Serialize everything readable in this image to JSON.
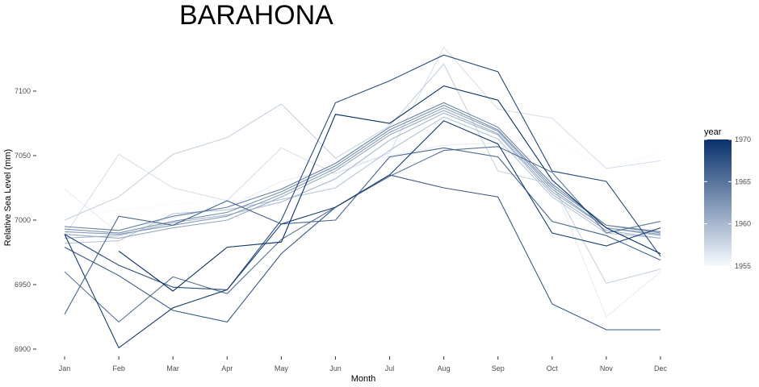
{
  "chart_data": {
    "type": "line",
    "title": "BARAHONA",
    "xlabel": "Month",
    "ylabel": "Relative Sea Level (mm)",
    "categories": [
      "Jan",
      "Feb",
      "Mar",
      "Apr",
      "May",
      "Jun",
      "Jul",
      "Aug",
      "Sep",
      "Oct",
      "Nov",
      "Dec"
    ],
    "ylim": [
      6895,
      7135
    ],
    "yticks": [
      6900,
      6950,
      7000,
      7050,
      7100
    ],
    "ytick_labels": [
      "6900",
      "6950",
      "7000",
      "7050",
      "7100"
    ],
    "grid": false,
    "legend": {
      "title": "year",
      "type": "colorbar",
      "placement": "right",
      "range": [
        1955,
        1970
      ],
      "ticks": [
        1955,
        1960,
        1965,
        1970
      ],
      "tick_labels": [
        "1955",
        "1960",
        "1965",
        "1970"
      ],
      "colors": [
        "#F7FBFF",
        "#08306B"
      ]
    },
    "series": [
      {
        "year": 1955,
        "values": [
          7002,
          7008,
          7012,
          7016,
          7022,
          7030,
          7048,
          7055,
          7060,
          7063,
          7040,
          7052
        ]
      },
      {
        "year": 1956,
        "values": [
          7024,
          6990,
          7002,
          7010,
          7030,
          7040,
          7050,
          7058,
          7060,
          7030,
          6925,
          6960
        ]
      },
      {
        "year": 1957,
        "values": [
          6988,
          7051,
          7025,
          7015,
          7056,
          7036,
          7052,
          7134,
          7086,
          7079,
          7040,
          7046
        ]
      },
      {
        "year": 1958,
        "values": [
          7000,
          7018,
          7051,
          7064,
          7090,
          7048,
          7073,
          7121,
          7038,
          7028,
          6951,
          6962
        ]
      },
      {
        "year": 1959,
        "values": [
          6982,
          6984,
          7005,
          7008,
          7016,
          7025,
          7054,
          7080,
          7063,
          7018,
          6990,
          6986
        ]
      },
      {
        "year": 1960,
        "values": [
          6986,
          6988,
          6998,
          7004,
          7014,
          7032,
          7062,
          7083,
          7066,
          7020,
          6992,
          6986
        ]
      },
      {
        "year": 1961,
        "values": [
          6989,
          6986,
          6994,
          7000,
          7018,
          7038,
          7066,
          7085,
          7067,
          7022,
          6994,
          6988
        ]
      },
      {
        "year": 1962,
        "values": [
          6991,
          6989,
          6996,
          7003,
          7020,
          7040,
          7068,
          7087,
          7069,
          7024,
          6994,
          6989
        ]
      },
      {
        "year": 1963,
        "values": [
          6993,
          6990,
          6999,
          7006,
          7022,
          7042,
          7070,
          7089,
          7070,
          7026,
          6996,
          6990
        ]
      },
      {
        "year": 1964,
        "values": [
          6995,
          6992,
          7003,
          7010,
          7024,
          7044,
          7072,
          7091,
          7072,
          7028,
          6996,
          6991
        ]
      },
      {
        "year": 1965,
        "values": [
          6960,
          6921,
          6956,
          6943,
          6985,
          7010,
          7034,
          7054,
          7057,
          7037,
          6990,
          6999
        ]
      },
      {
        "year": 1966,
        "values": [
          6927,
          7003,
          6996,
          7015,
          6997,
          7000,
          7049,
          7056,
          7049,
          6999,
          6988,
          6969
        ]
      },
      {
        "year": 1967,
        "values": [
          6979,
          6957,
          6930,
          6921,
          6974,
          7010,
          7035,
          7025,
          7018,
          6935,
          6915,
          6915
        ]
      },
      {
        "year": 1968,
        "values": [
          6989,
          6965,
          6948,
          6946,
          7000,
          7091,
          7108,
          7128,
          7115,
          7038,
          7030,
          6972
        ]
      },
      {
        "year": 1969,
        "values": [
          6989,
          6901,
          6932,
          6946,
          6997,
          7010,
          7035,
          7077,
          7059,
          6990,
          6980,
          6994
        ]
      },
      {
        "year": 1970,
        "values": [
          null,
          6976,
          6945,
          6979,
          6983,
          7082,
          7075,
          7104,
          7093,
          7031,
          6994,
          6974
        ]
      }
    ]
  }
}
